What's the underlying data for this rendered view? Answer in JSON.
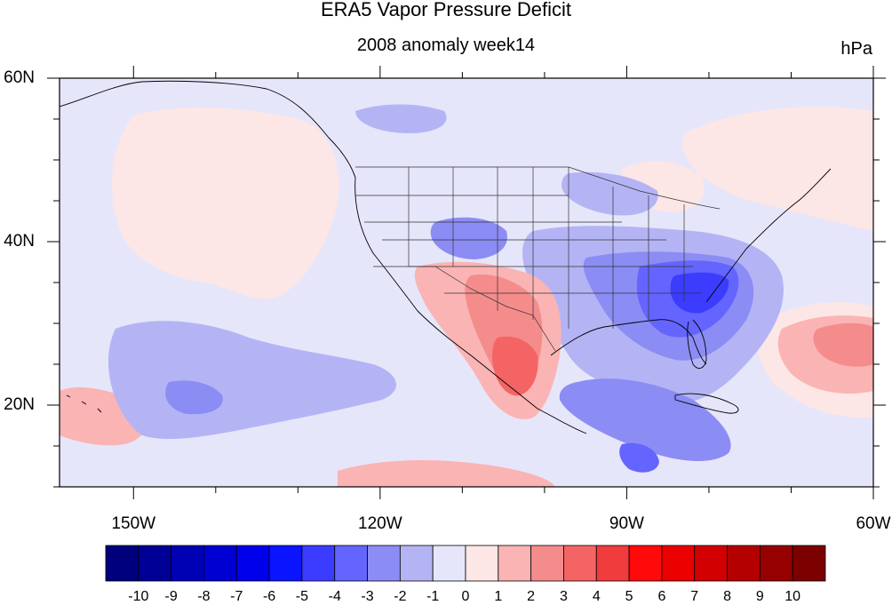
{
  "title": "ERA5 Vapor Pressure Deficit",
  "subtitle": "2008 anomaly week14",
  "units": "hPa",
  "map": {
    "lon_ticks": [
      {
        "value": -150,
        "label": "150W"
      },
      {
        "value": -120,
        "label": "120W"
      },
      {
        "value": -90,
        "label": "90W"
      },
      {
        "value": -60,
        "label": "60W"
      }
    ],
    "lat_ticks": [
      {
        "value": 60,
        "label": "60N"
      },
      {
        "value": 40,
        "label": "40N"
      },
      {
        "value": 20,
        "label": "20N"
      }
    ],
    "lon_range": [
      -159,
      -60
    ],
    "lat_range": [
      10,
      60
    ]
  },
  "colorbar": {
    "levels": [
      "-10",
      "-9",
      "-8",
      "-7",
      "-6",
      "-5",
      "-4",
      "-3",
      "-2",
      "-1",
      "0",
      "1",
      "2",
      "3",
      "4",
      "5",
      "6",
      "7",
      "8",
      "9",
      "10"
    ],
    "colors": [
      "#00007d",
      "#000096",
      "#0000b4",
      "#0000d2",
      "#0000eb",
      "#0a14ff",
      "#3c3cff",
      "#6464ff",
      "#8c8cf5",
      "#b4b4f5",
      "#e6e6fa",
      "#fde6e6",
      "#fab4b4",
      "#f58c8c",
      "#f56464",
      "#f03c3c",
      "#ff0a0a",
      "#eb0000",
      "#d20000",
      "#b40000",
      "#960000",
      "#7d0000"
    ]
  }
}
